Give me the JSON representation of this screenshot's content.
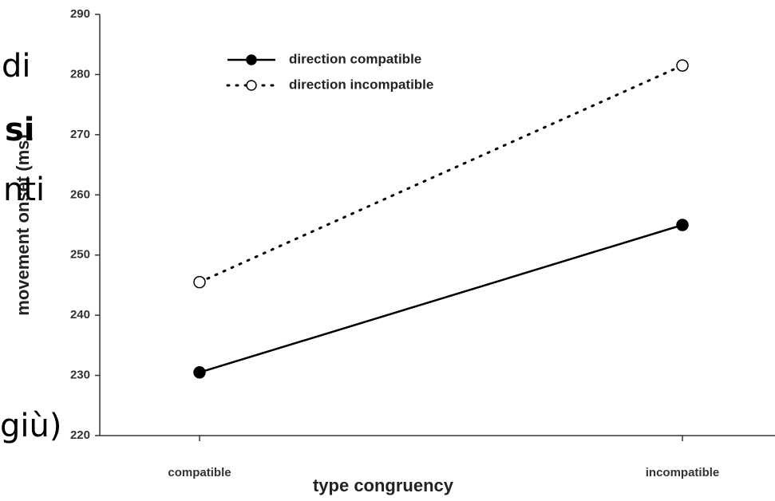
{
  "chart_data": {
    "type": "line",
    "xlabel": "type congruency",
    "ylabel": "movement onset (ms)",
    "categories": [
      "compatible",
      "incompatible"
    ],
    "series": [
      {
        "name": "direction compatible",
        "color": "#000000",
        "line_style": "solid",
        "marker": "filled",
        "values": [
          230.5,
          255
        ]
      },
      {
        "name": "direction incompatible",
        "color": "#000000",
        "line_style": "dotted",
        "marker": "open",
        "values": [
          245.5,
          281.5
        ]
      }
    ],
    "ylim": [
      220,
      290
    ],
    "yticks": [
      220,
      230,
      240,
      250,
      260,
      270,
      280,
      290
    ],
    "grid": false,
    "legend": "top",
    "annotations": [
      "di",
      "si",
      "nti",
      "giù)"
    ]
  }
}
